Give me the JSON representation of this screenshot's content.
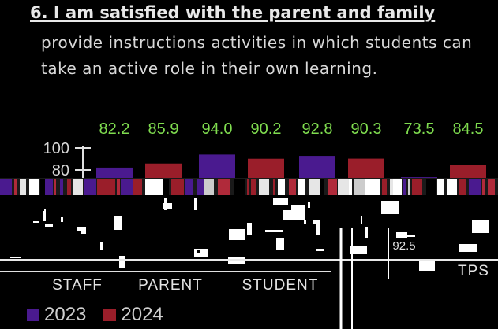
{
  "header": {
    "title": "6. I am satisfied with the parent and family",
    "subtitle": "provide instructions activities in which students can take an active role in their own learning."
  },
  "colors": {
    "y2023": "#4a1a8f",
    "y2024": "#9a1e2a",
    "value_label": "#7fdc4f",
    "axis": "#e0e0e0"
  },
  "chart_data": {
    "type": "bar",
    "categories": [
      "STAFF",
      "PARENT",
      "STUDENT",
      "TPS"
    ],
    "series": [
      {
        "name": "2023",
        "values": [
          82.2,
          94.0,
          92.8,
          73.5
        ]
      },
      {
        "name": "2024",
        "values": [
          85.9,
          90.2,
          90.3,
          84.5
        ]
      }
    ],
    "value_labels": [
      "82.2",
      "85.9",
      "94.0",
      "90.2",
      "92.8",
      "90.3",
      "73.5",
      "84.5"
    ],
    "y_ticks": [
      "100",
      "80"
    ],
    "ylim": [
      0,
      100
    ],
    "legend": {
      "placement": "bottom-left",
      "entries": [
        "2023",
        "2024"
      ]
    },
    "tps_sublabel": "92.5"
  }
}
